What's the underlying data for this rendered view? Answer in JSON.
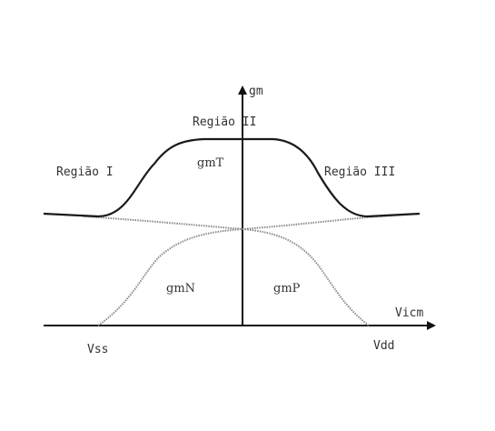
{
  "labels": {
    "y_axis": "gm",
    "x_axis": "Vicm",
    "region_1": "Região I",
    "region_2": "Região II",
    "region_3": "Região III",
    "curve_total": "gmT",
    "curve_n": "gmN",
    "curve_p": "gmP",
    "vss": "Vss",
    "vdd": "Vdd"
  },
  "colors": {
    "axis": "#111111",
    "total_curve": "#1a1a1a",
    "component_curves": "#8a8a8a",
    "text": "#333333"
  }
}
